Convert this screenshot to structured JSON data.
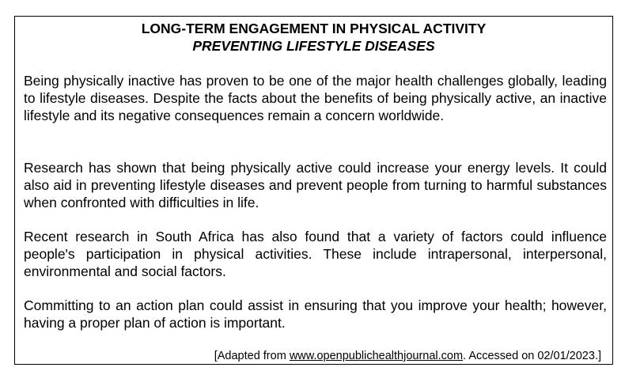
{
  "document": {
    "title": "LONG-TERM ENGAGEMENT IN PHYSICAL ACTIVITY",
    "subtitle": "PREVENTING LIFESTYLE DISEASES",
    "paragraphs": [
      "Being physically inactive has proven to be one of the major health challenges globally, leading to lifestyle diseases. Despite the facts about the benefits of being physically active, an inactive lifestyle and its negative consequences remain a concern worldwide.",
      "Research has shown that being physically active could increase your energy levels. It could also aid in preventing lifestyle diseases and prevent people from turning to harmful substances when confronted with difficulties in life.",
      "Recent research in South Africa has also found that a variety of factors could influence people's participation in physical activities. These include intrapersonal, interpersonal, environmental and social factors.",
      "Committing to an action plan could assist in ensuring that you improve your health; however, having a proper plan of action is important."
    ],
    "source": {
      "prefix": "[Adapted from ",
      "link": "www.openpublichealthjournal.com",
      "suffix": ". Accessed on 02/01/2023.]"
    }
  }
}
